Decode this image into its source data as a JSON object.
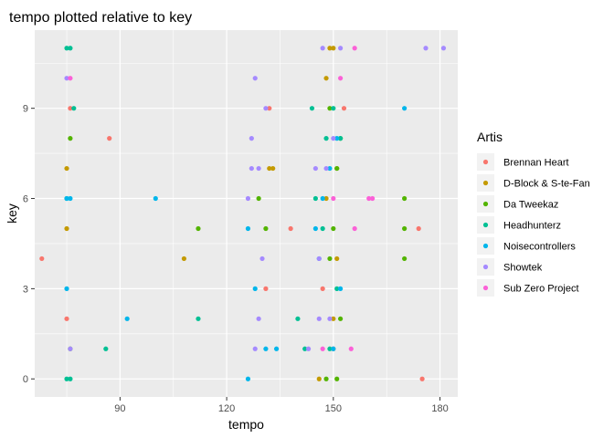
{
  "chart_data": {
    "type": "scatter",
    "title": "tempo plotted relative to key",
    "xlabel": "tempo",
    "ylabel": "key",
    "xlim": [
      66,
      185
    ],
    "ylim": [
      -0.6,
      11.6
    ],
    "xticks": [
      90,
      120,
      150,
      180
    ],
    "yticks": [
      0,
      3,
      6,
      9
    ],
    "grid": true,
    "legend": {
      "title": "Artis",
      "position": "right"
    },
    "series": [
      {
        "name": "Brennan Heart",
        "color": "#F8766D",
        "points": [
          [
            68,
            4
          ],
          [
            75,
            2
          ],
          [
            76,
            9
          ],
          [
            87,
            8
          ],
          [
            131,
            3
          ],
          [
            132,
            9
          ],
          [
            138,
            5
          ],
          [
            147,
            3
          ],
          [
            150,
            1
          ],
          [
            153,
            9
          ],
          [
            174,
            5
          ],
          [
            175,
            0
          ]
        ]
      },
      {
        "name": "D-Block & S-te-Fan",
        "color": "#C49A00",
        "points": [
          [
            75,
            5
          ],
          [
            75,
            7
          ],
          [
            108,
            4
          ],
          [
            132,
            7
          ],
          [
            133,
            7
          ],
          [
            146,
            0
          ],
          [
            148,
            6
          ],
          [
            148,
            10
          ],
          [
            149,
            11
          ],
          [
            150,
            2
          ],
          [
            150,
            11
          ],
          [
            151,
            4
          ],
          [
            151,
            7
          ]
        ]
      },
      {
        "name": "Da Tweekaz",
        "color": "#53B400",
        "points": [
          [
            76,
            1
          ],
          [
            76,
            8
          ],
          [
            112,
            5
          ],
          [
            129,
            6
          ],
          [
            131,
            5
          ],
          [
            148,
            0
          ],
          [
            149,
            4
          ],
          [
            149,
            9
          ],
          [
            150,
            5
          ],
          [
            151,
            0
          ],
          [
            151,
            7
          ],
          [
            152,
            2
          ],
          [
            152,
            8
          ],
          [
            170,
            4
          ],
          [
            170,
            5
          ],
          [
            170,
            6
          ]
        ]
      },
      {
        "name": "Headhunterz",
        "color": "#00C094",
        "points": [
          [
            75,
            0
          ],
          [
            75,
            6
          ],
          [
            75,
            11
          ],
          [
            76,
            0
          ],
          [
            76,
            11
          ],
          [
            77,
            9
          ],
          [
            86,
            1
          ],
          [
            112,
            2
          ],
          [
            140,
            2
          ],
          [
            142,
            1
          ],
          [
            144,
            9
          ],
          [
            145,
            6
          ],
          [
            147,
            5
          ],
          [
            148,
            8
          ],
          [
            149,
            1
          ],
          [
            150,
            9
          ],
          [
            151,
            3
          ],
          [
            152,
            8
          ]
        ]
      },
      {
        "name": "Noisecontrollers",
        "color": "#00B6EB",
        "points": [
          [
            75,
            3
          ],
          [
            75,
            6
          ],
          [
            76,
            6
          ],
          [
            92,
            2
          ],
          [
            100,
            6
          ],
          [
            126,
            0
          ],
          [
            126,
            5
          ],
          [
            128,
            3
          ],
          [
            131,
            1
          ],
          [
            134,
            1
          ],
          [
            145,
            5
          ],
          [
            146,
            4
          ],
          [
            147,
            6
          ],
          [
            149,
            7
          ],
          [
            150,
            1
          ],
          [
            151,
            8
          ],
          [
            152,
            3
          ],
          [
            170,
            9
          ]
        ]
      },
      {
        "name": "Showtek",
        "color": "#A58AFF",
        "points": [
          [
            75,
            10
          ],
          [
            76,
            1
          ],
          [
            126,
            6
          ],
          [
            127,
            8
          ],
          [
            127,
            7
          ],
          [
            128,
            10
          ],
          [
            128,
            1
          ],
          [
            129,
            7
          ],
          [
            129,
            2
          ],
          [
            130,
            4
          ],
          [
            131,
            9
          ],
          [
            143,
            1
          ],
          [
            145,
            7
          ],
          [
            146,
            2
          ],
          [
            146,
            4
          ],
          [
            147,
            11
          ],
          [
            148,
            7
          ],
          [
            149,
            2
          ],
          [
            150,
            8
          ],
          [
            152,
            11
          ],
          [
            176,
            11
          ],
          [
            181,
            11
          ]
        ]
      },
      {
        "name": "Sub Zero Project",
        "color": "#FB61D7",
        "points": [
          [
            76,
            10
          ],
          [
            147,
            1
          ],
          [
            150,
            6
          ],
          [
            152,
            10
          ],
          [
            155,
            1
          ],
          [
            156,
            5
          ],
          [
            156,
            11
          ],
          [
            160,
            6
          ],
          [
            161,
            6
          ]
        ]
      }
    ]
  }
}
